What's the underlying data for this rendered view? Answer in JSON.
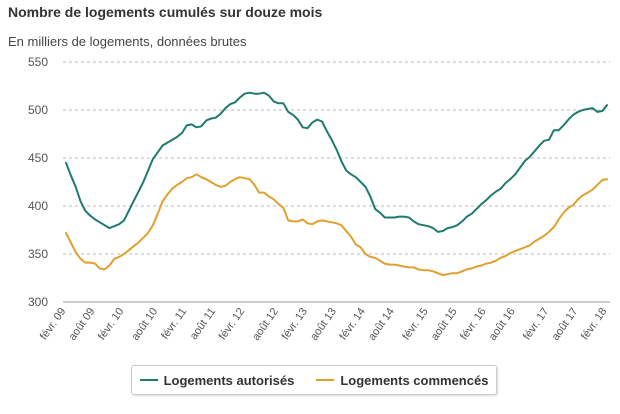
{
  "header": {
    "title": "Nombre de logements cumulés sur douze mois",
    "subtitle": "En milliers de logements, données brutes"
  },
  "chart_data": {
    "type": "line",
    "title": "Nombre de logements cumulés sur douze mois",
    "ylabel": "En milliers de logements, données brutes",
    "ylim": [
      300,
      550
    ],
    "yticks": [
      "550",
      "500",
      "450",
      "400",
      "350",
      "300"
    ],
    "xticks": [
      "févr. 09",
      "août 09",
      "févr. 10",
      "août 10",
      "févr. 11",
      "août 11",
      "févr. 12",
      "août 12",
      "févr. 13",
      "août 13",
      "févr. 14",
      "août 14",
      "févr. 15",
      "août 15",
      "févr. 16",
      "août 16",
      "févr. 17",
      "août 17",
      "févr. 18"
    ],
    "grid": "horizontal dashed",
    "legend_position": "bottom",
    "series": [
      {
        "name": "Logements autorisés",
        "color": "#1f7a70",
        "values": [
          445,
          432,
          420,
          405,
          395,
          390,
          386,
          383,
          380,
          377,
          379,
          381,
          385,
          395,
          405,
          415,
          425,
          437,
          449,
          456,
          463,
          466,
          469,
          472,
          476,
          484,
          485,
          482,
          483,
          489,
          491,
          492,
          496,
          502,
          506,
          508,
          513,
          517,
          518,
          517,
          517,
          518,
          515,
          509,
          507,
          507,
          498,
          495,
          490,
          482,
          481,
          487,
          490,
          488,
          478,
          469,
          459,
          447,
          437,
          433,
          430,
          425,
          420,
          410,
          397,
          393,
          388,
          388,
          388,
          389,
          389,
          388,
          384,
          381,
          380,
          379,
          377,
          373,
          374,
          377,
          378,
          380,
          384,
          389,
          392,
          397,
          402,
          406,
          411,
          415,
          418,
          424,
          428,
          433,
          440,
          447,
          451,
          457,
          463,
          468,
          469,
          479,
          479,
          484,
          490,
          495,
          498,
          500,
          501,
          502,
          498,
          499,
          505
        ]
      },
      {
        "name": "Logements commencés",
        "color": "#e0a030",
        "values": [
          372,
          362,
          352,
          345,
          341,
          341,
          340,
          335,
          334,
          338,
          345,
          347,
          350,
          354,
          358,
          362,
          367,
          372,
          380,
          392,
          405,
          412,
          418,
          422,
          425,
          429,
          430,
          433,
          430,
          428,
          425,
          422,
          420,
          421,
          425,
          428,
          430,
          429,
          428,
          422,
          414,
          414,
          410,
          407,
          402,
          398,
          385,
          384,
          384,
          386,
          382,
          381,
          384,
          385,
          384,
          383,
          382,
          380,
          374,
          368,
          360,
          357,
          350,
          347,
          346,
          343,
          340,
          339,
          339,
          338,
          337,
          336,
          336,
          334,
          333,
          333,
          332,
          330,
          328,
          329,
          330,
          330,
          332,
          334,
          335,
          337,
          338,
          340,
          341,
          343,
          346,
          348,
          351,
          353,
          355,
          357,
          359,
          363,
          366,
          369,
          373,
          378,
          386,
          393,
          398,
          401,
          407,
          411,
          414,
          417,
          422,
          427,
          428
        ]
      }
    ]
  }
}
